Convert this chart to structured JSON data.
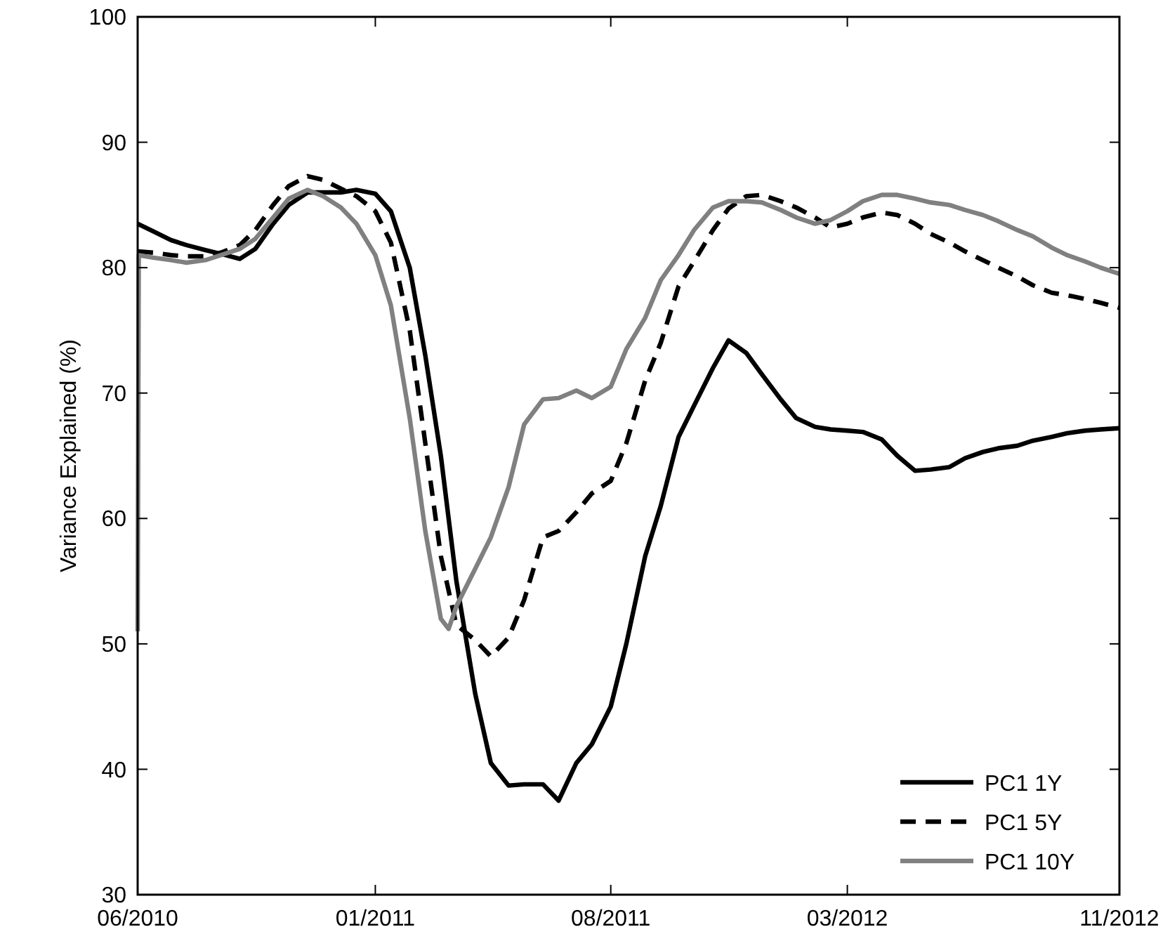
{
  "chart_data": {
    "type": "line",
    "ylabel": "Variance Explained (%)",
    "x": [
      "2010-06-01",
      "2010-06-15",
      "2010-07-01",
      "2010-07-15",
      "2010-08-01",
      "2010-08-15",
      "2010-09-01",
      "2010-09-15",
      "2010-10-01",
      "2010-10-15",
      "2010-11-01",
      "2010-11-15",
      "2010-12-01",
      "2010-12-15",
      "2011-01-01",
      "2011-01-15",
      "2011-02-01",
      "2011-02-15",
      "2011-03-01",
      "2011-03-15",
      "2011-04-01",
      "2011-04-15",
      "2011-05-01",
      "2011-05-15",
      "2011-06-01",
      "2011-06-15",
      "2011-07-01",
      "2011-07-15",
      "2011-08-01",
      "2011-08-15",
      "2011-09-01",
      "2011-09-15",
      "2011-10-01",
      "2011-10-15",
      "2011-11-01",
      "2011-11-15",
      "2011-12-01",
      "2011-12-15",
      "2012-01-01",
      "2012-01-15",
      "2012-02-01",
      "2012-02-15",
      "2012-03-01",
      "2012-03-15",
      "2012-04-01",
      "2012-04-15",
      "2012-05-01",
      "2012-05-15",
      "2012-06-01",
      "2012-06-15",
      "2012-07-01",
      "2012-07-15",
      "2012-08-01",
      "2012-08-15",
      "2012-09-01",
      "2012-09-15",
      "2012-10-01",
      "2012-10-15",
      "2012-11-01"
    ],
    "series": [
      {
        "name": "PC1 1Y",
        "color": "#000000",
        "line_style": "solid",
        "values": [
          83.5,
          82.9,
          82.2,
          81.8,
          81.4,
          81.1,
          80.7,
          81.5,
          83.5,
          85,
          86,
          86,
          86,
          86.2,
          85.9,
          84.5,
          80,
          73,
          65,
          55,
          46,
          40.5,
          38.7,
          38.8,
          38.8,
          37.5,
          40.5,
          42,
          45,
          50,
          57,
          61,
          66.5,
          69,
          72,
          74.2,
          73.2,
          71.5,
          69.5,
          68,
          67.3,
          67.1,
          67,
          66.9,
          66.3,
          65,
          63.8,
          63.9,
          64.1,
          64.8,
          65.3,
          65.6,
          65.8,
          66.2,
          66.5,
          66.8,
          67,
          67.1,
          67.2
        ]
      },
      {
        "name": "PC1 5Y",
        "color": "#000000",
        "line_style": "dashed",
        "values": [
          81.3,
          81.2,
          81,
          80.9,
          80.9,
          81.2,
          81.8,
          83,
          85,
          86.5,
          87.3,
          87,
          86.3,
          85.7,
          84.5,
          82,
          75,
          66,
          57,
          51.5,
          50.3,
          49,
          50.5,
          53.5,
          58.5,
          59,
          60.5,
          62,
          63,
          66,
          71,
          74,
          78.5,
          80.5,
          83,
          84.7,
          85.7,
          85.8,
          85.3,
          84.8,
          84,
          83.2,
          83.5,
          84,
          84.4,
          84.2,
          83.5,
          82.7,
          82,
          81.3,
          80.6,
          80,
          79.3,
          78.6,
          78,
          77.8,
          77.5,
          77.2,
          76.8
        ]
      },
      {
        "name": "PC1 10Y",
        "color": "#808080",
        "line_style": "solid",
        "x": [
          "2010-06-01",
          "2010-06-02",
          "2010-06-15",
          "2010-07-01",
          "2010-07-15",
          "2010-08-01",
          "2010-08-15",
          "2010-09-01",
          "2010-09-15",
          "2010-10-01",
          "2010-10-15",
          "2010-11-01",
          "2010-11-15",
          "2010-12-01",
          "2010-12-15",
          "2011-01-01",
          "2011-01-15",
          "2011-02-01",
          "2011-02-15",
          "2011-03-01",
          "2011-03-08",
          "2011-03-15",
          "2011-04-01",
          "2011-04-15",
          "2011-05-01",
          "2011-05-15",
          "2011-06-01",
          "2011-06-15",
          "2011-07-01",
          "2011-07-15",
          "2011-08-01",
          "2011-08-15",
          "2011-09-01",
          "2011-09-15",
          "2011-10-01",
          "2011-10-15",
          "2011-11-01",
          "2011-11-15",
          "2011-12-01",
          "2011-12-15",
          "2012-01-01",
          "2012-01-15",
          "2012-02-01",
          "2012-02-15",
          "2012-03-01",
          "2012-03-15",
          "2012-04-01",
          "2012-04-15",
          "2012-05-01",
          "2012-05-15",
          "2012-06-01",
          "2012-06-15",
          "2012-07-01",
          "2012-07-15",
          "2012-08-01",
          "2012-08-15",
          "2012-09-01",
          "2012-09-15",
          "2012-10-01",
          "2012-10-15",
          "2012-11-01"
        ],
        "values": [
          51,
          81,
          80.8,
          80.6,
          80.4,
          80.6,
          81,
          81.5,
          82.3,
          84,
          85.5,
          86.2,
          85.7,
          84.8,
          83.5,
          81,
          77,
          68,
          59,
          52,
          51.2,
          53,
          56,
          58.5,
          62.5,
          67.5,
          69.5,
          69.6,
          70.2,
          69.6,
          70.5,
          73.5,
          76,
          79,
          81,
          83,
          84.8,
          85.3,
          85.3,
          85.2,
          84.6,
          84,
          83.5,
          83.8,
          84.5,
          85.3,
          85.8,
          85.8,
          85.5,
          85.2,
          85,
          84.6,
          84.2,
          83.7,
          83,
          82.5,
          81.6,
          81,
          80.5,
          80,
          79.5
        ]
      }
    ],
    "xlim": [
      "2010-06-01",
      "2012-11-01"
    ],
    "xticks": [
      {
        "value": "2010-06-01",
        "label": "06/2010"
      },
      {
        "value": "2011-01-01",
        "label": "01/2011"
      },
      {
        "value": "2011-08-01",
        "label": "08/2011"
      },
      {
        "value": "2012-03-01",
        "label": "03/2012"
      },
      {
        "value": "2012-11-01",
        "label": "11/2012"
      }
    ],
    "ylim": [
      30,
      100
    ],
    "yticks": [
      30,
      40,
      50,
      60,
      70,
      80,
      90,
      100
    ],
    "grid": false,
    "legend": "bottom right",
    "marker": "none"
  }
}
